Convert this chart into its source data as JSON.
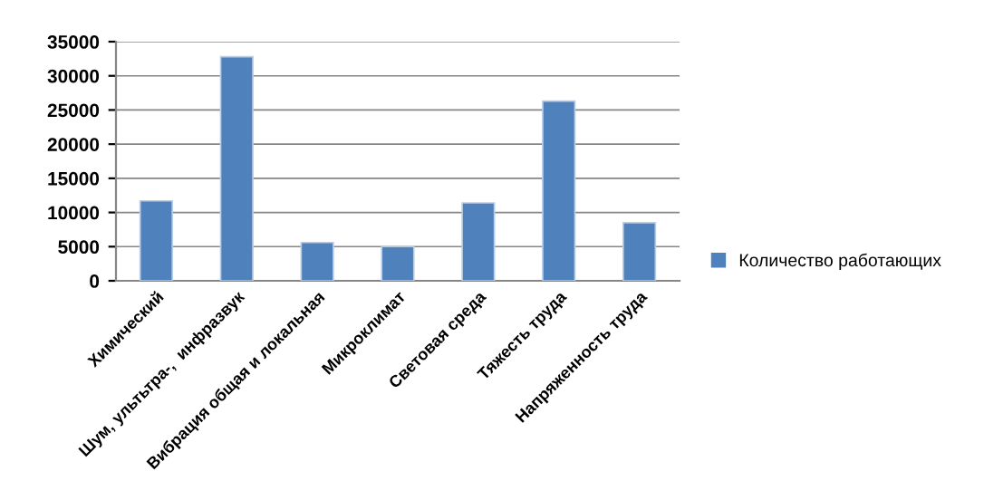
{
  "chart_data": {
    "type": "bar",
    "categories": [
      "Химический",
      "Шум, ультьтра-,  инфразвук",
      "Вибрация общая и локальная",
      "Микроклимат",
      "Световая среда",
      "Тяжесть труда",
      "Напряженность труда"
    ],
    "series": [
      {
        "name": "Количество работающих",
        "color": "#4f81bd",
        "values": [
          11700,
          32800,
          5600,
          5000,
          11400,
          26300,
          8500
        ]
      }
    ],
    "ylim": [
      0,
      35000
    ],
    "yticks": [
      0,
      5000,
      10000,
      15000,
      20000,
      25000,
      30000,
      35000
    ],
    "grid": "y",
    "legend": "right"
  }
}
